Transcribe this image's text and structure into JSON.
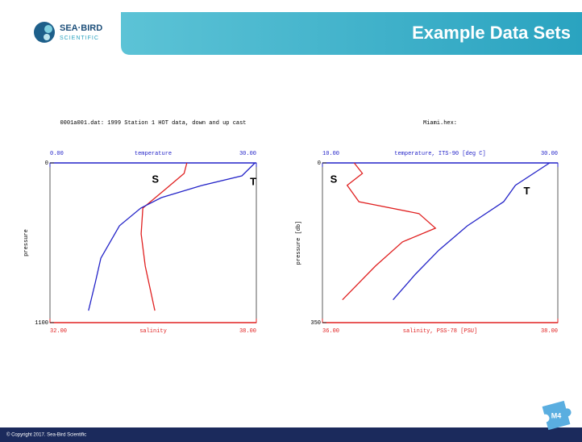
{
  "slide": {
    "logo": [
      "SEA·BIRD",
      "SCIENTIFIC"
    ],
    "title": "Example Data Sets",
    "copyright": "© Copyright 2017. Sea-Bird Scientific",
    "badge": "M4"
  },
  "chart_data": [
    {
      "type": "line",
      "title": "0001a001.dat: 1999 Station 1 HOT data, down and up cast",
      "xlabel": "temperature",
      "x2label": "salinity",
      "ylabel": "pressure",
      "xlim": [
        0,
        30
      ],
      "xticks": [
        {
          "value": 0,
          "label": "0.00"
        },
        {
          "value": 30,
          "label": "30.00"
        }
      ],
      "x2lim": [
        32,
        38
      ],
      "x2ticks": [
        {
          "value": 32,
          "label": "32.00"
        },
        {
          "value": 38,
          "label": "38.00"
        }
      ],
      "ylim": [
        0,
        1100
      ],
      "yticks": [
        0,
        1100
      ],
      "y_inverted": true,
      "series": [
        {
          "name": "S",
          "color": "#e02020",
          "axis": "x2",
          "y": [
            0,
            72,
            183,
            311,
            489,
            711,
            1017
          ],
          "values": [
            35.98,
            35.9,
            35.35,
            34.7,
            34.65,
            34.77,
            35.05
          ]
        },
        {
          "name": "T",
          "color": "#2424c8",
          "axis": "x",
          "y": [
            0,
            89,
            156,
            239,
            311,
            433,
            656,
            822,
            1017
          ],
          "values": [
            29.8,
            27.9,
            22.0,
            16.2,
            13.2,
            10.1,
            7.4,
            6.6,
            5.6
          ]
        }
      ]
    },
    {
      "type": "line",
      "title": "Miami.hex:",
      "xlabel": "temperature, ITS-90 [deg C]",
      "x2label": "salinity, PSS-78 [PSU]",
      "ylabel": "pressure [db]",
      "xlim": [
        10,
        30
      ],
      "xticks": [
        {
          "value": 10,
          "label": "10.00"
        },
        {
          "value": 30,
          "label": "30.00"
        }
      ],
      "x2lim": [
        36,
        38
      ],
      "x2ticks": [
        {
          "value": 36,
          "label": "36.00"
        },
        {
          "value": 38,
          "label": "38.00"
        }
      ],
      "ylim": [
        0,
        350
      ],
      "yticks": [
        0,
        350
      ],
      "y_inverted": true,
      "series": [
        {
          "name": "S",
          "color": "#e02020",
          "axis": "x2",
          "y": [
            0,
            23,
            49,
            85,
            111,
            143,
            173,
            226,
            300
          ],
          "values": [
            36.27,
            36.34,
            36.21,
            36.31,
            36.82,
            36.96,
            36.68,
            36.45,
            36.17
          ]
        },
        {
          "name": "T",
          "color": "#2424c8",
          "axis": "x",
          "y": [
            0,
            49,
            85,
            138,
            191,
            244,
            300
          ],
          "values": [
            29.3,
            26.4,
            25.4,
            22.3,
            19.9,
            17.9,
            16.0
          ]
        }
      ]
    }
  ]
}
